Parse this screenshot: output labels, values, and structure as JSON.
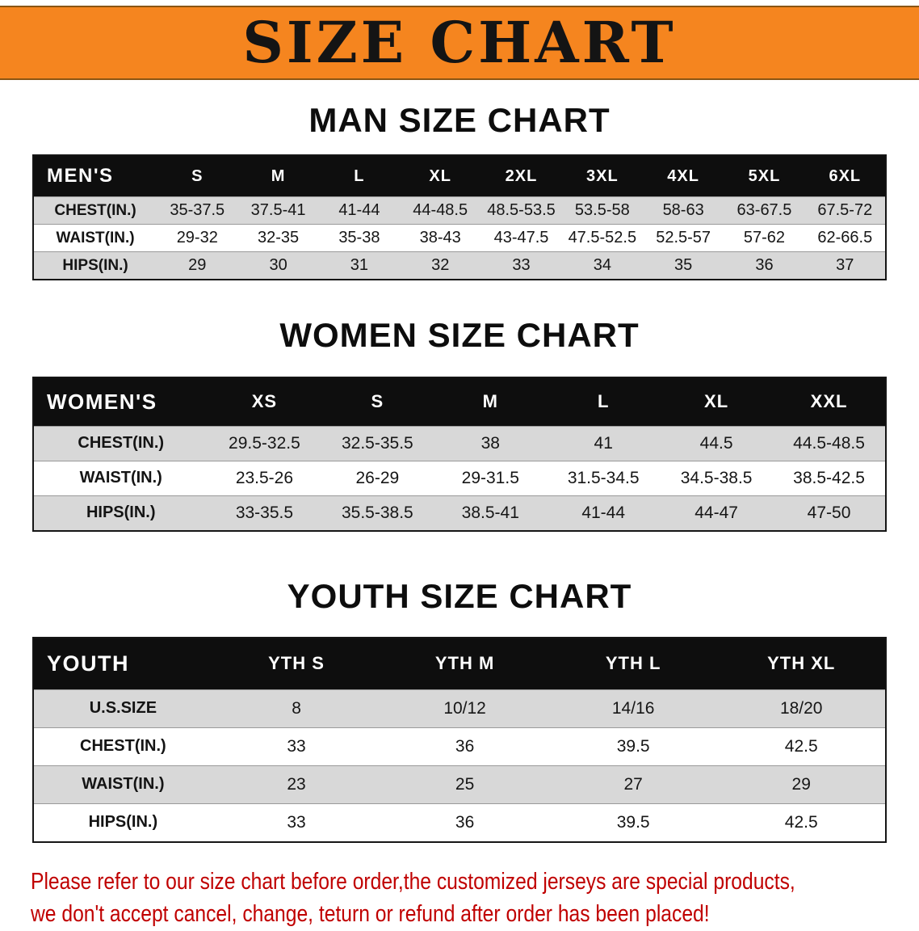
{
  "banner": {
    "title": "SIZE CHART"
  },
  "men": {
    "heading": "MAN SIZE CHART",
    "table": {
      "header": [
        "MEN'S",
        "S",
        "M",
        "L",
        "XL",
        "2XL",
        "3XL",
        "4XL",
        "5XL",
        "6XL"
      ],
      "rows": [
        [
          "CHEST(IN.)",
          "35-37.5",
          "37.5-41",
          "41-44",
          "44-48.5",
          "48.5-53.5",
          "53.5-58",
          "58-63",
          "63-67.5",
          "67.5-72"
        ],
        [
          "WAIST(IN.)",
          "29-32",
          "32-35",
          "35-38",
          "38-43",
          "43-47.5",
          "47.5-52.5",
          "52.5-57",
          "57-62",
          "62-66.5"
        ],
        [
          "HIPS(IN.)",
          "29",
          "30",
          "31",
          "32",
          "33",
          "34",
          "35",
          "36",
          "37"
        ]
      ]
    }
  },
  "women": {
    "heading": "WOMEN SIZE CHART",
    "table": {
      "header": [
        "WOMEN'S",
        "XS",
        "S",
        "M",
        "L",
        "XL",
        "XXL"
      ],
      "rows": [
        [
          "CHEST(IN.)",
          "29.5-32.5",
          "32.5-35.5",
          "38",
          "41",
          "44.5",
          "44.5-48.5"
        ],
        [
          "WAIST(IN.)",
          "23.5-26",
          "26-29",
          "29-31.5",
          "31.5-34.5",
          "34.5-38.5",
          "38.5-42.5"
        ],
        [
          "HIPS(IN.)",
          "33-35.5",
          "35.5-38.5",
          "38.5-41",
          "41-44",
          "44-47",
          "47-50"
        ]
      ]
    }
  },
  "youth": {
    "heading": "YOUTH SIZE CHART",
    "table": {
      "header": [
        "YOUTH",
        "YTH S",
        "YTH M",
        "YTH L",
        "YTH XL"
      ],
      "rows": [
        [
          "U.S.SIZE",
          "8",
          "10/12",
          "14/16",
          "18/20"
        ],
        [
          "CHEST(IN.)",
          "33",
          "36",
          "39.5",
          "42.5"
        ],
        [
          "WAIST(IN.)",
          "23",
          "25",
          "27",
          "29"
        ],
        [
          "HIPS(IN.)",
          "33",
          "36",
          "39.5",
          "42.5"
        ]
      ]
    }
  },
  "footer": {
    "line1": "Please refer to our size chart before order,the customized jerseys are special products,",
    "line2": "we don't accept cancel, change, teturn or refund after order has been placed!"
  },
  "colors": {
    "banner_bg": "#F5851F",
    "header_bg": "#0E0E0E",
    "row_alt_bg": "#D8D8D8",
    "footer_text": "#C00000"
  }
}
